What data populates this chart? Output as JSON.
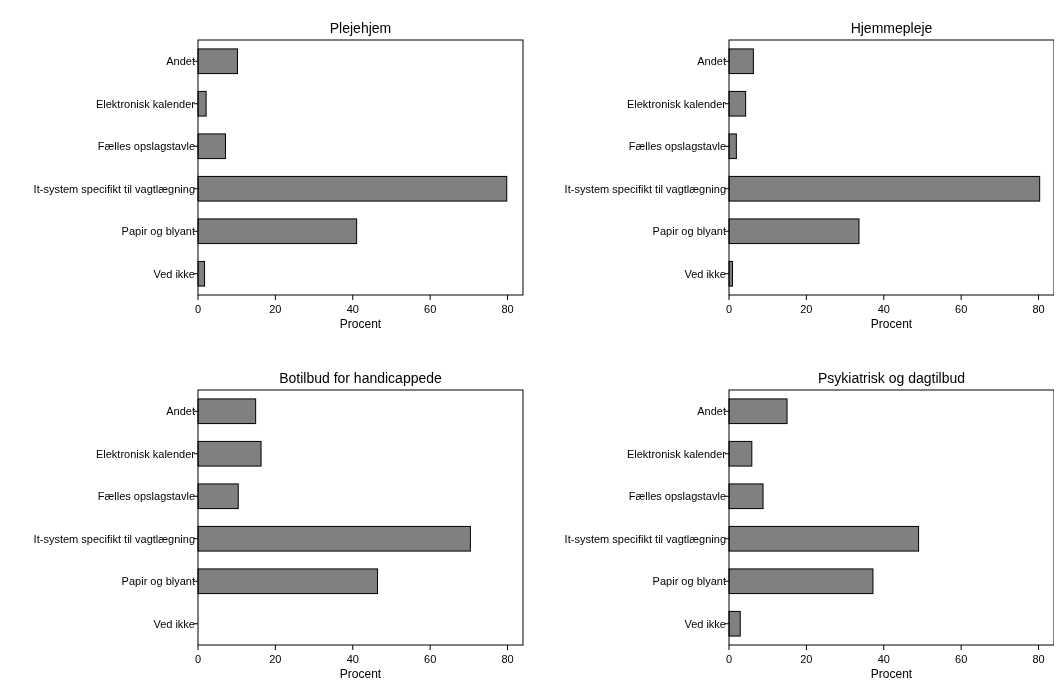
{
  "chart_data": [
    {
      "type": "bar",
      "orientation": "horizontal",
      "title": "Plejehjem",
      "xlabel": "Procent",
      "categories": [
        "Andet",
        "Elektronisk kalender",
        "Fælles opslagstavle",
        "It-system specifikt til vagtlægning",
        "Papir og blyant",
        "Ved ikke"
      ],
      "values": [
        10.2,
        2.1,
        7.1,
        79.8,
        41.0,
        1.7
      ],
      "color": "#808080",
      "xlim": [
        0,
        84
      ],
      "xticks": [
        0,
        20,
        40,
        60,
        80
      ],
      "grid": false
    },
    {
      "type": "bar",
      "orientation": "horizontal",
      "title": "Hjemmepleje",
      "xlabel": "Procent",
      "categories": [
        "Andet",
        "Elektronisk kalender",
        "Fælles opslagstavle",
        "It-system specifikt til vagtlægning",
        "Papir og blyant",
        "Ved ikke"
      ],
      "values": [
        6.3,
        4.3,
        1.9,
        80.3,
        33.6,
        0.9
      ],
      "color": "#808080",
      "xlim": [
        0,
        84
      ],
      "xticks": [
        0,
        20,
        40,
        60,
        80
      ],
      "grid": false
    },
    {
      "type": "bar",
      "orientation": "horizontal",
      "title": "Botilbud for handicappede",
      "xlabel": "Procent",
      "categories": [
        "Andet",
        "Elektronisk kalender",
        "Fælles opslagstavle",
        "It-system specifikt til vagtlægning",
        "Papir og blyant",
        "Ved ikke"
      ],
      "values": [
        14.9,
        16.3,
        10.4,
        70.4,
        46.4,
        0
      ],
      "color": "#808080",
      "xlim": [
        0,
        84
      ],
      "xticks": [
        0,
        20,
        40,
        60,
        80
      ],
      "grid": false
    },
    {
      "type": "bar",
      "orientation": "horizontal",
      "title": "Psykiatrisk og dagtilbud",
      "xlabel": "Procent",
      "categories": [
        "Andet",
        "Elektronisk kalender",
        "Fælles opslagstavle",
        "It-system specifikt til vagtlægning",
        "Papir og blyant",
        "Ved ikke"
      ],
      "values": [
        15.0,
        5.9,
        8.8,
        49.0,
        37.2,
        2.9
      ],
      "color": "#808080",
      "xlim": [
        0,
        84
      ],
      "xticks": [
        0,
        20,
        40,
        60,
        80
      ],
      "grid": false
    }
  ]
}
